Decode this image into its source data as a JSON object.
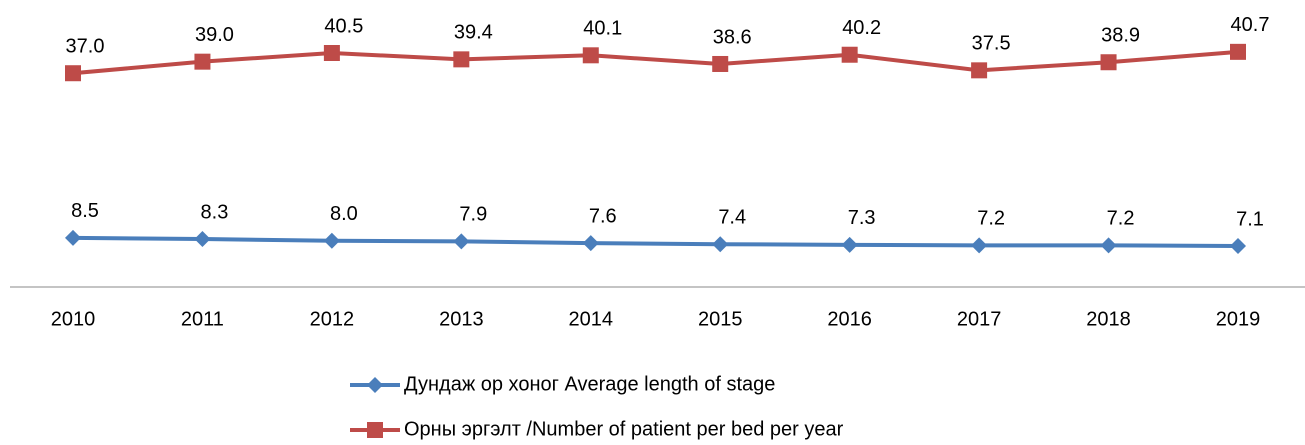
{
  "chart_data": {
    "type": "line",
    "categories": [
      "2010",
      "2011",
      "2012",
      "2013",
      "2014",
      "2015",
      "2016",
      "2017",
      "2018",
      "2019"
    ],
    "series": [
      {
        "name": "Дундаж ор хоног Average length of stage",
        "color": "#4a7ebb",
        "marker": "diamond",
        "values": [
          8.5,
          8.3,
          8.0,
          7.9,
          7.6,
          7.4,
          7.3,
          7.2,
          7.2,
          7.1
        ],
        "value_labels": [
          "8.5",
          "8.3",
          "8.0",
          "7.9",
          "7.6",
          "7.4",
          "7.3",
          "7.2",
          "7.2",
          "7.1"
        ]
      },
      {
        "name": "Орны эргэлт /Number of patient per bed per year",
        "color": "#be4b48",
        "marker": "square",
        "values": [
          37.0,
          39.0,
          40.5,
          39.4,
          40.1,
          38.6,
          40.2,
          37.5,
          38.9,
          40.7
        ],
        "value_labels": [
          "37.0",
          "39.0",
          "40.5",
          "39.4",
          "40.1",
          "38.6",
          "40.2",
          "37.5",
          "38.9",
          "40.7"
        ]
      }
    ],
    "ylim": [
      0,
      45
    ],
    "legend": "bottom"
  }
}
